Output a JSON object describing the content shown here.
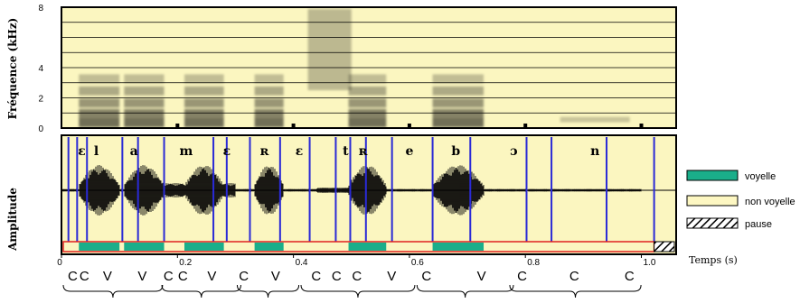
{
  "spectrogram": {
    "ylabel": "Fréquence (kHz)",
    "yticks": [
      "8",
      "4",
      "2",
      "0"
    ],
    "ytick_values": [
      8,
      4,
      2,
      0
    ],
    "ylim": [
      0,
      8
    ]
  },
  "waveform": {
    "ylabel": "Amplitude"
  },
  "time_axis": {
    "label": "Temps (s)",
    "ticks": [
      "0",
      "0.2",
      "0.4",
      "0.6",
      "0.8",
      "1.0"
    ],
    "tick_values": [
      0,
      0.2,
      0.4,
      0.6,
      0.8,
      1.0
    ],
    "xlim": [
      0,
      1.06
    ]
  },
  "phonemes": [
    {
      "symbol": "ɛ",
      "t": 0.035
    },
    {
      "symbol": "l",
      "t": 0.06
    },
    {
      "symbol": "a",
      "t": 0.125
    },
    {
      "symbol": "m",
      "t": 0.215
    },
    {
      "symbol": "ɛ",
      "t": 0.285
    },
    {
      "symbol": "ʀ",
      "t": 0.35
    },
    {
      "symbol": "ɛ",
      "t": 0.41
    },
    {
      "symbol": "t",
      "t": 0.49
    },
    {
      "symbol": "ʀ",
      "t": 0.52
    },
    {
      "symbol": "e",
      "t": 0.6
    },
    {
      "symbol": "b",
      "t": 0.68
    },
    {
      "symbol": "ɔ",
      "t": 0.78
    },
    {
      "symbol": "n",
      "t": 0.92
    }
  ],
  "boundaries": [
    0.012,
    0.027,
    0.044,
    0.105,
    0.132,
    0.177,
    0.262,
    0.285,
    0.325,
    0.377,
    0.428,
    0.473,
    0.498,
    0.525,
    0.57,
    0.64,
    0.705,
    0.802,
    0.845,
    0.94,
    1.022
  ],
  "vowel_segments": [
    [
      0.03,
      0.1
    ],
    [
      0.108,
      0.177
    ],
    [
      0.212,
      0.28
    ],
    [
      0.333,
      0.383
    ],
    [
      0.495,
      0.56
    ],
    [
      0.64,
      0.728
    ]
  ],
  "pause_segment": [
    1.022,
    1.06
  ],
  "cv_labels": [
    {
      "text": "C",
      "t": 0.01
    },
    {
      "text": "C",
      "t": 0.03
    },
    {
      "text": "V",
      "t": 0.07
    },
    {
      "text": "V",
      "t": 0.13
    },
    {
      "text": "C",
      "t": 0.175
    },
    {
      "text": "C",
      "t": 0.2
    },
    {
      "text": "V",
      "t": 0.25
    },
    {
      "text": "C",
      "t": 0.305
    },
    {
      "text": "V",
      "t": 0.36
    },
    {
      "text": "C",
      "t": 0.43
    },
    {
      "text": "C",
      "t": 0.465
    },
    {
      "text": "C",
      "t": 0.5
    },
    {
      "text": "V",
      "t": 0.56
    },
    {
      "text": "C",
      "t": 0.62
    },
    {
      "text": "V",
      "t": 0.715
    },
    {
      "text": "C",
      "t": 0.785
    },
    {
      "text": "C",
      "t": 0.875
    },
    {
      "text": "C",
      "t": 0.97
    }
  ],
  "syllable_braces": [
    [
      0.0,
      0.165
    ],
    [
      0.17,
      0.3
    ],
    [
      0.3,
      0.4
    ],
    [
      0.41,
      0.6
    ],
    [
      0.61,
      0.77
    ],
    [
      0.77,
      0.99
    ]
  ],
  "legend": [
    {
      "label": "voyelle",
      "color": "#1aae8a",
      "kind": "vowel"
    },
    {
      "label": "non voyelle",
      "color": "#fdf7c2",
      "kind": "nonvowel"
    },
    {
      "label": "pause",
      "color": "#ffffff",
      "kind": "pause"
    }
  ],
  "colors": {
    "panel_bg": "#fbf6c0",
    "boundary": "#2a2ad6",
    "vowel": "#1aae8a",
    "nonvowel_border": "#e02020"
  }
}
